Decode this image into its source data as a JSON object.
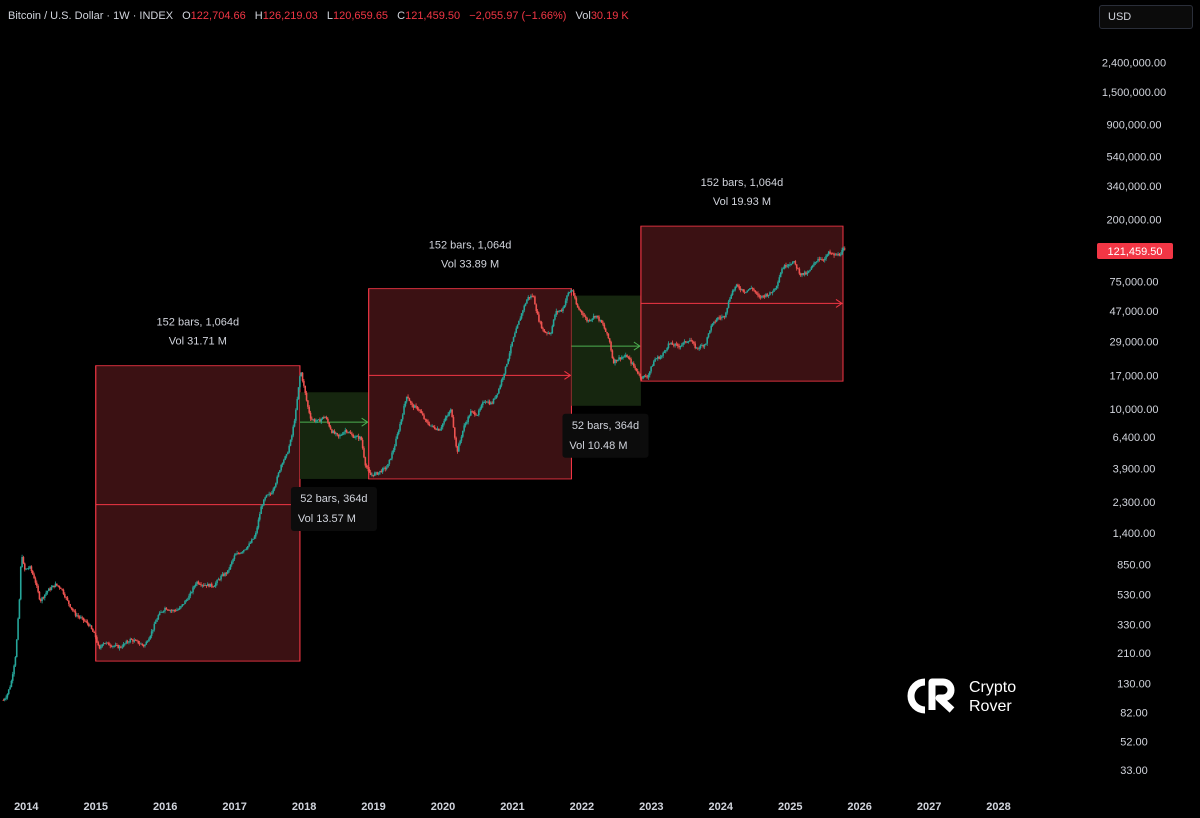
{
  "header": {
    "symbol": "Bitcoin / U.S. Dollar · 1W · INDEX",
    "open_label": "O",
    "open": "122,704.66",
    "high_label": "H",
    "high": "126,219.03",
    "low_label": "L",
    "low": "120,659.65",
    "close_label": "C",
    "close": "121,459.50",
    "change": "−2,055.97 (−1.66%)",
    "vol_label": "Vol",
    "vol": "30.19 K"
  },
  "currency_button": "USD",
  "brand": {
    "line1": "Crypto",
    "line2": "Rover"
  },
  "colors": {
    "background": "#000000",
    "up": "#26a69a",
    "down": "#ef5350",
    "range_red_fill": "#3b1113",
    "range_red_stroke": "#f23645",
    "range_green_fill": "#16260f",
    "range_green_stroke": "#4caf50",
    "axis_text": "#d1d4dc",
    "last_price_bg": "#f23645"
  },
  "chart_data": {
    "type": "candlestick",
    "title": "",
    "scale": "log",
    "xlabel": "",
    "ylabel": "",
    "ylim": [
      30,
      3000000
    ],
    "xlim": [
      2013.65,
      2029.0
    ],
    "x_ticks": [
      "2014",
      "2015",
      "2016",
      "2017",
      "2018",
      "2019",
      "2020",
      "2021",
      "2022",
      "2023",
      "2024",
      "2025",
      "2026",
      "2027",
      "2028"
    ],
    "y_ticks": [
      "2,400,000.00",
      "1,500,000.00",
      "900,000.00",
      "540,000.00",
      "340,000.00",
      "200,000.00",
      "75,000.00",
      "47,000.00",
      "29,000.00",
      "17,000.00",
      "10,000.00",
      "6,400.00",
      "3,900.00",
      "2,300.00",
      "1,400.00",
      "850.00",
      "530.00",
      "330.00",
      "210.00",
      "130.00",
      "82.00",
      "52.00",
      "33.00"
    ],
    "last_price_label": "121,459.50",
    "last_price": 121459.5,
    "price_path": [
      [
        2013.67,
        100
      ],
      [
        2013.72,
        108
      ],
      [
        2013.78,
        130
      ],
      [
        2013.85,
        210
      ],
      [
        2013.9,
        480
      ],
      [
        2013.93,
        1050
      ],
      [
        2013.97,
        780
      ],
      [
        2014.05,
        820
      ],
      [
        2014.12,
        680
      ],
      [
        2014.2,
        480
      ],
      [
        2014.3,
        560
      ],
      [
        2014.42,
        620
      ],
      [
        2014.5,
        590
      ],
      [
        2014.6,
        470
      ],
      [
        2014.7,
        390
      ],
      [
        2014.8,
        360
      ],
      [
        2014.9,
        330
      ],
      [
        2015.0,
        270
      ],
      [
        2015.05,
        220
      ],
      [
        2015.1,
        250
      ],
      [
        2015.2,
        240
      ],
      [
        2015.35,
        230
      ],
      [
        2015.5,
        260
      ],
      [
        2015.6,
        250
      ],
      [
        2015.7,
        235
      ],
      [
        2015.8,
        290
      ],
      [
        2015.9,
        380
      ],
      [
        2016.0,
        430
      ],
      [
        2016.1,
        410
      ],
      [
        2016.2,
        420
      ],
      [
        2016.35,
        520
      ],
      [
        2016.45,
        650
      ],
      [
        2016.55,
        620
      ],
      [
        2016.7,
        610
      ],
      [
        2016.8,
        700
      ],
      [
        2016.9,
        760
      ],
      [
        2017.0,
        980
      ],
      [
        2017.1,
        1050
      ],
      [
        2017.2,
        1150
      ],
      [
        2017.3,
        1350
      ],
      [
        2017.38,
        2100
      ],
      [
        2017.45,
        2500
      ],
      [
        2017.52,
        2600
      ],
      [
        2017.6,
        3200
      ],
      [
        2017.68,
        4300
      ],
      [
        2017.75,
        4800
      ],
      [
        2017.82,
        6400
      ],
      [
        2017.88,
        9500
      ],
      [
        2017.95,
        18500
      ],
      [
        2018.0,
        14000
      ],
      [
        2018.05,
        10500
      ],
      [
        2018.1,
        8500
      ],
      [
        2018.2,
        8200
      ],
      [
        2018.3,
        8900
      ],
      [
        2018.4,
        7000
      ],
      [
        2018.5,
        6400
      ],
      [
        2018.6,
        7200
      ],
      [
        2018.7,
        6500
      ],
      [
        2018.82,
        6300
      ],
      [
        2018.88,
        4200
      ],
      [
        2018.95,
        3500
      ],
      [
        2019.05,
        3600
      ],
      [
        2019.2,
        4000
      ],
      [
        2019.3,
        5500
      ],
      [
        2019.4,
        8500
      ],
      [
        2019.48,
        12500
      ],
      [
        2019.55,
        10500
      ],
      [
        2019.65,
        10000
      ],
      [
        2019.75,
        8200
      ],
      [
        2019.85,
        7500
      ],
      [
        2019.95,
        7200
      ],
      [
        2020.05,
        8800
      ],
      [
        2020.12,
        9900
      ],
      [
        2020.2,
        5000
      ],
      [
        2020.3,
        7500
      ],
      [
        2020.4,
        9500
      ],
      [
        2020.5,
        9200
      ],
      [
        2020.6,
        11500
      ],
      [
        2020.7,
        10800
      ],
      [
        2020.8,
        13500
      ],
      [
        2020.9,
        19000
      ],
      [
        2021.0,
        29000
      ],
      [
        2021.08,
        38000
      ],
      [
        2021.15,
        48000
      ],
      [
        2021.22,
        58000
      ],
      [
        2021.3,
        60000
      ],
      [
        2021.37,
        42000
      ],
      [
        2021.45,
        34000
      ],
      [
        2021.55,
        33000
      ],
      [
        2021.62,
        46000
      ],
      [
        2021.72,
        48000
      ],
      [
        2021.8,
        62000
      ],
      [
        2021.86,
        66000
      ],
      [
        2021.93,
        50000
      ],
      [
        2022.0,
        46000
      ],
      [
        2022.08,
        40000
      ],
      [
        2022.2,
        44000
      ],
      [
        2022.3,
        38000
      ],
      [
        2022.4,
        29000
      ],
      [
        2022.45,
        21000
      ],
      [
        2022.55,
        22500
      ],
      [
        2022.65,
        23000
      ],
      [
        2022.75,
        19500
      ],
      [
        2022.85,
        16500
      ],
      [
        2022.95,
        16800
      ],
      [
        2023.05,
        22000
      ],
      [
        2023.15,
        23000
      ],
      [
        2023.25,
        28000
      ],
      [
        2023.4,
        27000
      ],
      [
        2023.55,
        30000
      ],
      [
        2023.65,
        26000
      ],
      [
        2023.78,
        28000
      ],
      [
        2023.85,
        36000
      ],
      [
        2023.95,
        42000
      ],
      [
        2024.05,
        43000
      ],
      [
        2024.15,
        62000
      ],
      [
        2024.22,
        70000
      ],
      [
        2024.35,
        64000
      ],
      [
        2024.45,
        68000
      ],
      [
        2024.55,
        58000
      ],
      [
        2024.62,
        60000
      ],
      [
        2024.72,
        62000
      ],
      [
        2024.8,
        70000
      ],
      [
        2024.88,
        92000
      ],
      [
        2024.95,
        98000
      ],
      [
        2025.05,
        102000
      ],
      [
        2025.15,
        84000
      ],
      [
        2025.25,
        85000
      ],
      [
        2025.32,
        95000
      ],
      [
        2025.4,
        108000
      ],
      [
        2025.5,
        107000
      ],
      [
        2025.55,
        118000
      ],
      [
        2025.65,
        113000
      ],
      [
        2025.72,
        116000
      ],
      [
        2025.76,
        124000
      ],
      [
        2025.8,
        121459.5
      ]
    ],
    "ranges": [
      {
        "kind": "red",
        "x0": 2015.0,
        "x1": 2017.94,
        "y0": 185,
        "y1": 19800,
        "mid_price": 2200,
        "label": "152 bars, 1,064d",
        "vol": "Vol 31.71 M",
        "label_pos": "above"
      },
      {
        "kind": "green",
        "x0": 2017.94,
        "x1": 2018.93,
        "y0": 3300,
        "y1": 13000,
        "mid_price": 8100,
        "label": "52 bars, 364d",
        "vol": "Vol 13.57 M",
        "label_pos": "below"
      },
      {
        "kind": "red",
        "x0": 2018.93,
        "x1": 2021.85,
        "y0": 3300,
        "y1": 67000,
        "mid_price": 17000,
        "label": "152 bars, 1,064d",
        "vol": "Vol 33.89 M",
        "label_pos": "above"
      },
      {
        "kind": "green",
        "x0": 2021.85,
        "x1": 2022.85,
        "y0": 10500,
        "y1": 60000,
        "mid_price": 27000,
        "label": "52 bars, 364d",
        "vol": "Vol 10.48 M",
        "label_pos": "below"
      },
      {
        "kind": "red",
        "x0": 2022.85,
        "x1": 2025.76,
        "y0": 15500,
        "y1": 180000,
        "mid_price": 53000,
        "label": "152 bars, 1,064d",
        "vol": "Vol 19.93 M",
        "label_pos": "above"
      }
    ]
  }
}
